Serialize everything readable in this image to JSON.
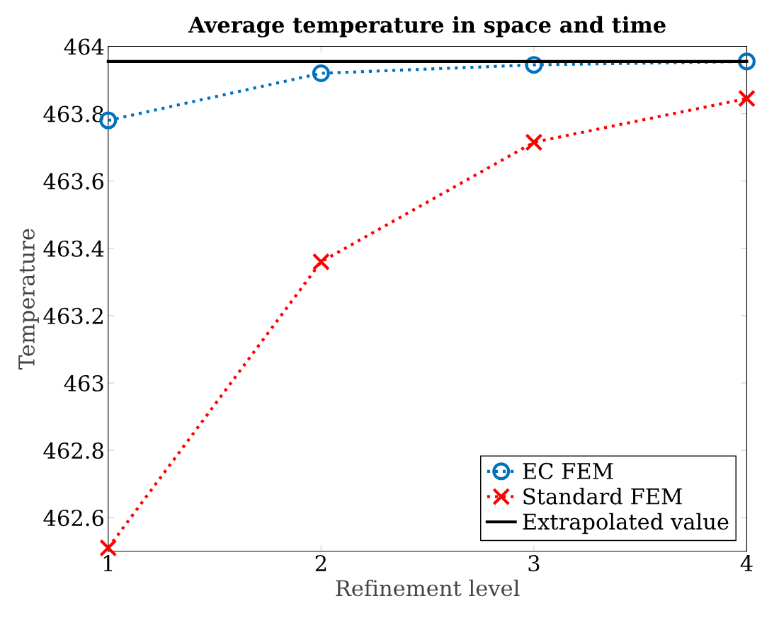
{
  "chart_data": {
    "type": "line",
    "title": "Average temperature in space and time",
    "xlabel": "Refinement level",
    "ylabel": "Temperature",
    "x": [
      1,
      2,
      3,
      4
    ],
    "series": [
      {
        "name": "EC FEM",
        "color": "#0072bd",
        "values": [
          463.78,
          463.92,
          463.945,
          463.955
        ],
        "marker": "circle",
        "line_style": "dotted"
      },
      {
        "name": "Standard FEM",
        "color": "#ff0000",
        "values": [
          462.51,
          463.36,
          463.715,
          463.845
        ],
        "marker": "cross",
        "line_style": "dotted"
      },
      {
        "name": "Extrapolated value",
        "color": "#000000",
        "values": [
          463.955,
          463.955,
          463.955,
          463.955
        ],
        "marker": "none",
        "line_style": "solid"
      }
    ],
    "xlim": [
      1,
      4
    ],
    "xticks": [
      1,
      2,
      3,
      4
    ],
    "ylim": [
      462.5,
      464
    ],
    "yticks": [
      462.6,
      462.8,
      463,
      463.2,
      463.4,
      463.6,
      463.8,
      464
    ],
    "grid": false,
    "legend": "bottom right"
  }
}
